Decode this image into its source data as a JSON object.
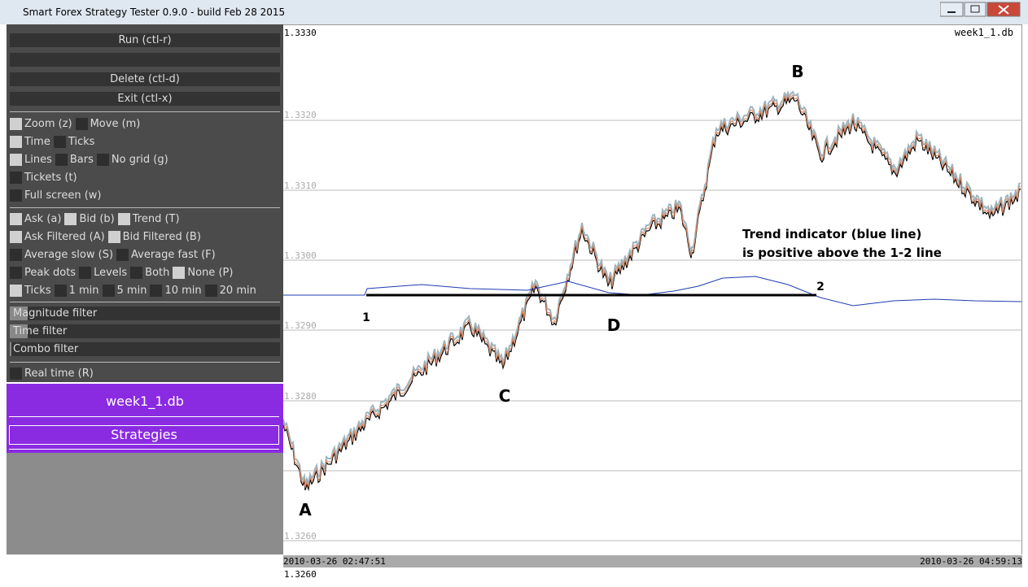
{
  "window": {
    "title": "Smart Forex Strategy Tester 0.9.0 - build Feb 28 2015"
  },
  "panel": {
    "buttons": [
      "Run (ctl-r)",
      "Delete (ctl-d)",
      "Exit (ctl-x)"
    ],
    "checkbox_groups": [
      [
        [
          {
            "label": "Zoom (z)",
            "checked": true
          },
          {
            "label": "Move (m)",
            "checked": false
          }
        ],
        [
          {
            "label": "Time",
            "checked": true
          },
          {
            "label": "Ticks",
            "checked": false
          }
        ],
        [
          {
            "label": "Lines",
            "checked": true
          },
          {
            "label": "Bars",
            "checked": false
          },
          {
            "label": "No grid (g)",
            "checked": false
          }
        ],
        [
          {
            "label": "Tickets (t)",
            "checked": false
          }
        ],
        [
          {
            "label": "Full screen (w)",
            "checked": false
          }
        ]
      ],
      [
        [
          {
            "label": "Ask (a)",
            "checked": true
          },
          {
            "label": "Bid (b)",
            "checked": true
          },
          {
            "label": "Trend (T)",
            "checked": true
          }
        ],
        [
          {
            "label": "Ask Filtered (A)",
            "checked": true
          },
          {
            "label": "Bid Filtered (B)",
            "checked": true
          }
        ],
        [
          {
            "label": "Average slow (S)",
            "checked": false
          },
          {
            "label": "Average fast (F)",
            "checked": false
          }
        ],
        [
          {
            "label": "Peak dots",
            "checked": false
          },
          {
            "label": "Levels",
            "checked": false
          },
          {
            "label": "Both",
            "checked": false
          },
          {
            "label": "None (P)",
            "checked": true
          }
        ],
        [
          {
            "label": "Ticks",
            "checked": true
          },
          {
            "label": "1 min",
            "checked": false
          },
          {
            "label": "5 min",
            "checked": false
          },
          {
            "label": "10 min",
            "checked": false
          },
          {
            "label": "20 min",
            "checked": false
          }
        ]
      ]
    ],
    "sliders": [
      "Magnitude filter",
      "Time filter",
      "Combo filter"
    ],
    "realtime": {
      "label": "Real time (R)",
      "checked": false
    },
    "database": "week1_1.db",
    "strategies": "Strategies"
  },
  "chart": {
    "file": "week1_1.db",
    "price_labels": [
      "1.3330",
      "1.3320",
      "1.3310",
      "1.3300",
      "1.3290",
      "1.3280",
      "1.3260"
    ],
    "start_time": "2010-03-26 02:47:51",
    "end_time": "2010-03-26 04:59:13",
    "bottom_price": "1.3260",
    "points": [
      "A",
      "B",
      "C",
      "D",
      "1",
      "2"
    ],
    "annotation": [
      "Trend indicator (blue line)",
      "is positive above the 1-2 line"
    ]
  }
}
